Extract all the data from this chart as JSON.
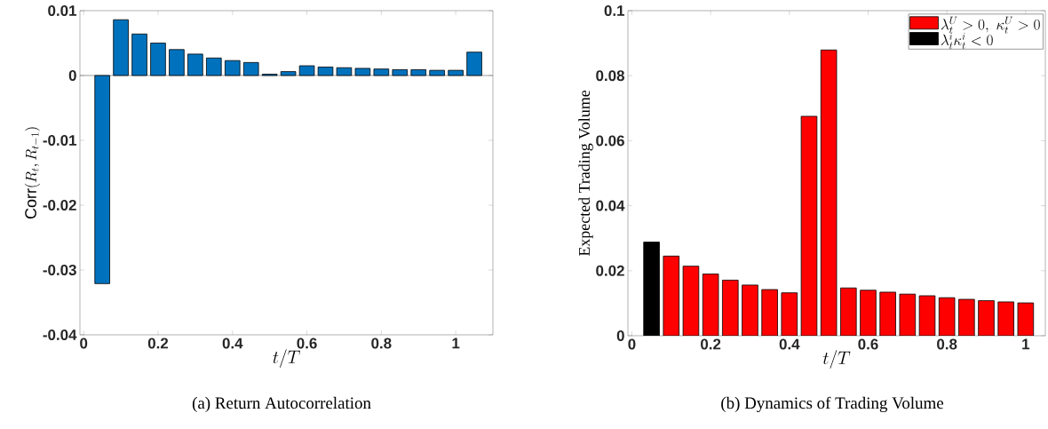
{
  "chart_data": [
    {
      "type": "bar",
      "title": "(a)  Return Autocorrelation",
      "xlabel": "t/T",
      "ylabel": "\\mathrm{Corr}(R_t, R_{t-1})",
      "x": [
        0.05,
        0.1,
        0.15,
        0.2,
        0.25,
        0.3,
        0.35,
        0.4,
        0.45,
        0.5,
        0.55,
        0.6,
        0.65,
        0.7,
        0.75,
        0.8,
        0.85,
        0.9,
        0.95,
        1.0,
        1.05
      ],
      "values": [
        -0.0321,
        0.0086,
        0.0064,
        0.005,
        0.004,
        0.0033,
        0.0027,
        0.0023,
        0.002,
        0.0002,
        0.0006,
        0.0015,
        0.0013,
        0.0012,
        0.0011,
        0.001,
        0.0009,
        0.0009,
        0.0008,
        0.0008,
        0.0036
      ],
      "color": "#0072bd",
      "xlim": [
        -0.01,
        1.1
      ],
      "ylim": [
        -0.04,
        0.01
      ],
      "xticks": [
        0,
        0.2,
        0.4,
        0.6,
        0.8,
        1
      ],
      "yticks": [
        -0.04,
        -0.03,
        -0.02,
        -0.01,
        0,
        0.01
      ],
      "ref_lines": [
        {
          "axis": "y",
          "value": 0,
          "color": "#555555"
        }
      ],
      "grid": false,
      "legend": false
    },
    {
      "type": "bar",
      "title": "(b)  Dynamics of Trading Volume",
      "xlabel": "t/T",
      "ylabel": "Expected Trading Volume",
      "series": [
        {
          "name": "\\lambda_t^U > 0,\\ \\kappa_t^U > 0",
          "color": "#ff0000",
          "x": [
            0.1,
            0.15,
            0.2,
            0.25,
            0.3,
            0.35,
            0.4,
            0.45,
            0.5,
            0.55,
            0.6,
            0.65,
            0.7,
            0.75,
            0.8,
            0.85,
            0.9,
            0.95,
            1.0
          ],
          "values": [
            0.0245,
            0.0214,
            0.019,
            0.0171,
            0.0156,
            0.0142,
            0.0132,
            0.0675,
            0.0879,
            0.0147,
            0.014,
            0.0134,
            0.0128,
            0.0123,
            0.0117,
            0.0112,
            0.0108,
            0.0104,
            0.0101
          ]
        },
        {
          "name": "\\lambda_t^i\\kappa_t^i < 0",
          "color": "#000000",
          "x": [
            0.05
          ],
          "values": [
            0.0288
          ]
        }
      ],
      "xlim": [
        -0.01,
        1.05
      ],
      "ylim": [
        0,
        0.1
      ],
      "xticks": [
        0,
        0.2,
        0.4,
        0.6,
        0.8,
        1
      ],
      "yticks": [
        0,
        0.02,
        0.04,
        0.06,
        0.08,
        0.1
      ],
      "grid": false,
      "legend": "top right"
    }
  ]
}
